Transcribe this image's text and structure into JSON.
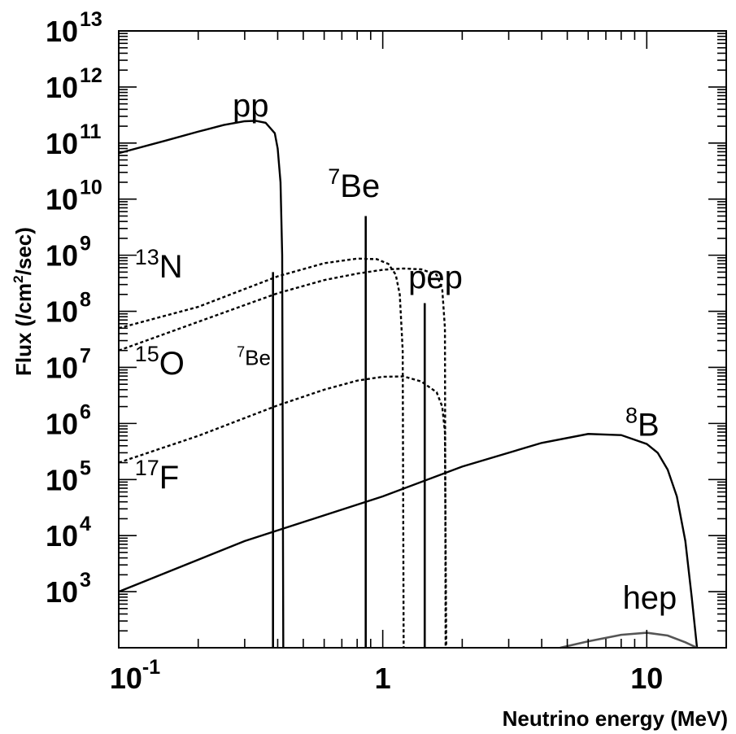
{
  "chart_data": {
    "type": "line",
    "title": "",
    "xlabel": "Neutrino energy (MeV)",
    "ylabel": {
      "prefix": "Flux (/cm",
      "sup": "2",
      "suffix": "/sec)"
    },
    "x_scale": "log",
    "y_scale": "log",
    "xlim": [
      0.1,
      20
    ],
    "ylim": [
      100,
      10000000000000
    ],
    "x_ticks": [
      {
        "value": 0.1,
        "base": "10",
        "exp": "-1"
      },
      {
        "value": 1,
        "base": "1",
        "exp": ""
      },
      {
        "value": 10,
        "base": "10",
        "exp": ""
      }
    ],
    "y_ticks": [
      {
        "value": 1000,
        "base": "10",
        "exp": "3"
      },
      {
        "value": 10000,
        "base": "10",
        "exp": "4"
      },
      {
        "value": 100000,
        "base": "10",
        "exp": "5"
      },
      {
        "value": 1000000,
        "base": "10",
        "exp": "6"
      },
      {
        "value": 10000000,
        "base": "10",
        "exp": "7"
      },
      {
        "value": 100000000,
        "base": "10",
        "exp": "8"
      },
      {
        "value": 1000000000,
        "base": "10",
        "exp": "9"
      },
      {
        "value": 10000000000,
        "base": "10",
        "exp": "10"
      },
      {
        "value": 100000000000,
        "base": "10",
        "exp": "11"
      },
      {
        "value": 1000000000000,
        "base": "10",
        "exp": "12"
      },
      {
        "value": 10000000000000,
        "base": "10",
        "exp": "13"
      }
    ],
    "grid": false,
    "series": [
      {
        "style": "solid",
        "x": [
          0.1,
          0.15,
          0.2,
          0.25,
          0.3,
          0.33,
          0.36,
          0.39,
          0.4,
          0.41,
          0.416,
          0.42
        ],
        "y": [
          66000000000,
          110000000000,
          160000000000,
          210000000000,
          245000000000,
          250000000000,
          230000000000,
          150000000000,
          80000000000,
          20000000000,
          1000000000,
          100
        ]
      },
      {
        "style": "solid",
        "x": [
          0.1,
          0.3,
          1,
          2,
          4,
          6,
          8,
          10,
          11,
          12,
          13,
          14,
          14.8,
          15.5
        ],
        "y": [
          1000,
          8000,
          50000,
          170000,
          450000,
          650000,
          620000,
          430000,
          300000,
          150000,
          50000,
          8000,
          800,
          100
        ]
      },
      {
        "style": "solid-gray",
        "x": [
          4.7,
          6,
          8,
          10,
          12,
          14,
          15.5
        ],
        "y": [
          100,
          130,
          170,
          185,
          165,
          125,
          100
        ]
      },
      {
        "style": "dotted",
        "x": [
          0.1,
          0.2,
          0.4,
          0.6,
          0.8,
          0.95,
          1.05,
          1.12,
          1.16,
          1.19,
          1.2
        ],
        "y": [
          50000000,
          120000000,
          420000000,
          720000000,
          870000000,
          850000000,
          700000000,
          450000000,
          200000000,
          20000000,
          100
        ]
      },
      {
        "style": "dotted",
        "x": [
          0.1,
          0.2,
          0.4,
          0.6,
          0.8,
          1,
          1.2,
          1.4,
          1.6,
          1.68,
          1.72,
          1.73
        ],
        "y": [
          20000000,
          65000000,
          210000000,
          360000000,
          470000000,
          550000000,
          580000000,
          560000000,
          450000000,
          250000000,
          50000000,
          100
        ]
      },
      {
        "style": "dotted",
        "x": [
          0.1,
          0.2,
          0.4,
          0.6,
          0.8,
          1,
          1.2,
          1.4,
          1.6,
          1.68,
          1.72,
          1.74
        ],
        "y": [
          200000,
          600000,
          2100000,
          4000000,
          5800000,
          6800000,
          6900000,
          5600000,
          3600000,
          2000000,
          700000,
          100
        ]
      }
    ],
    "lines": [
      {
        "x": 0.384,
        "y": 500000000,
        "style": "solid"
      },
      {
        "x": 0.862,
        "y": 5000000000,
        "style": "solid"
      },
      {
        "x": 1.442,
        "y": 140000000,
        "style": "solid"
      }
    ],
    "annotations": [
      {
        "key": "pp",
        "text": "pp",
        "sup": "",
        "x": 0.27,
        "y": 300000000000,
        "size": "large"
      },
      {
        "key": "be7",
        "text": "Be",
        "sup": "7",
        "x": 0.62,
        "y": 11000000000,
        "size": "large"
      },
      {
        "key": "n13",
        "text": "N",
        "sup": "13",
        "x": 0.115,
        "y": 400000000,
        "size": "large"
      },
      {
        "key": "pep",
        "text": "pep",
        "sup": "",
        "x": 1.25,
        "y": 260000000,
        "size": "large"
      },
      {
        "key": "o15",
        "text": "O",
        "sup": "15",
        "x": 0.115,
        "y": 7500000,
        "size": "large"
      },
      {
        "key": "be7small",
        "text": "Be",
        "sup": "7",
        "x": 0.28,
        "y": 11000000,
        "size": "small"
      },
      {
        "key": "b8",
        "text": "B",
        "sup": "8",
        "x": 8.3,
        "y": 600000,
        "size": "large"
      },
      {
        "key": "f17",
        "text": "F",
        "sup": "17",
        "x": 0.115,
        "y": 70000,
        "size": "large"
      },
      {
        "key": "hep",
        "text": "hep",
        "sup": "",
        "x": 8.1,
        "y": 500,
        "size": "large"
      }
    ]
  }
}
